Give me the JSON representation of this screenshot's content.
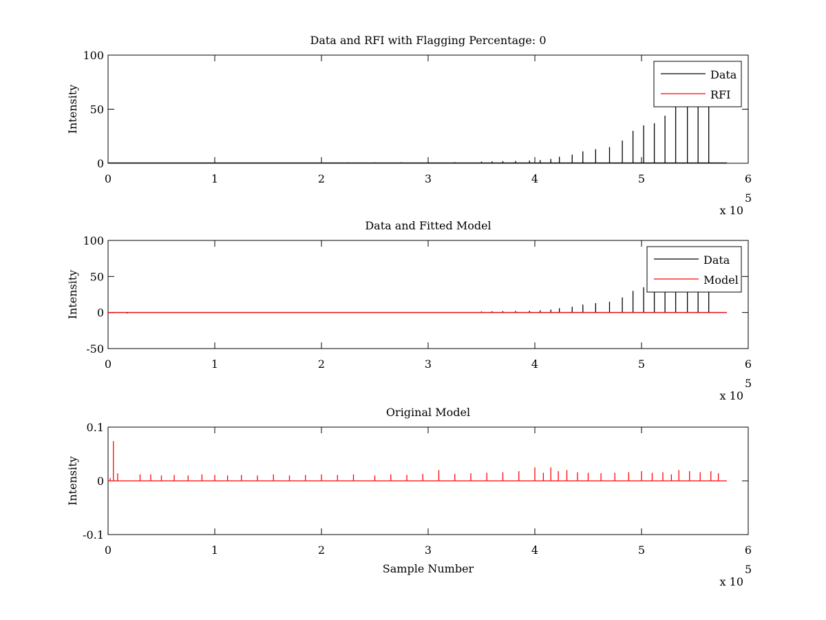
{
  "figure": {
    "background": "#ffffff"
  },
  "chart_data": [
    {
      "type": "line",
      "title": "Data and RFI with Flagging Percentage: 0",
      "xlabel": "",
      "ylabel": "Intensity",
      "xlim": [
        0,
        6
      ],
      "ylim": [
        0,
        100
      ],
      "x_ticks": [
        "0",
        "1",
        "2",
        "3",
        "4",
        "5",
        "6"
      ],
      "y_ticks": [
        "0",
        "50",
        "100"
      ],
      "y_tick_values": [
        0,
        50,
        100
      ],
      "x_multiplier": {
        "base": "x 10",
        "exponent": "5"
      },
      "legend": {
        "placement": "top-right",
        "entries": [
          "Data",
          "RFI"
        ]
      },
      "series": [
        {
          "name": "Data",
          "color": "#000000",
          "style": "spikes",
          "baseline": 0.3,
          "x": [
            1.0,
            2.25,
            2.5,
            2.75,
            3.0,
            3.25,
            3.5,
            3.6,
            3.7,
            3.82,
            3.95,
            4.05,
            4.15,
            4.23,
            4.35,
            4.45,
            4.57,
            4.7,
            4.82,
            4.92,
            5.02,
            5.12,
            5.22,
            5.32,
            5.43,
            5.53,
            5.63
          ],
          "values": [
            0.8,
            0.8,
            0.8,
            0.9,
            0.9,
            1.0,
            1.5,
            1.8,
            2,
            2.2,
            2.5,
            3,
            4,
            6,
            8,
            11,
            13,
            15,
            21,
            30,
            35,
            37,
            44,
            52,
            58,
            62,
            70
          ]
        },
        {
          "name": "RFI",
          "color": "#ff0000",
          "style": "line",
          "x": [],
          "values": []
        }
      ]
    },
    {
      "type": "line",
      "title": "Data and Fitted Model",
      "xlabel": "",
      "ylabel": "Intensity",
      "xlim": [
        0,
        6
      ],
      "ylim": [
        -50,
        100
      ],
      "x_ticks": [
        "0",
        "1",
        "2",
        "3",
        "4",
        "5",
        "6"
      ],
      "y_ticks": [
        "-50",
        "0",
        "50",
        "100"
      ],
      "y_tick_values": [
        -50,
        0,
        50,
        100
      ],
      "x_multiplier": {
        "base": "x 10",
        "exponent": "5"
      },
      "legend": {
        "placement": "top-right",
        "entries": [
          "Data",
          "Model"
        ]
      },
      "series": [
        {
          "name": "Data",
          "color": "#000000",
          "style": "spikes",
          "baseline": 0,
          "x": [
            0.18,
            3.5,
            3.6,
            3.7,
            3.82,
            3.95,
            4.05,
            4.15,
            4.23,
            4.35,
            4.45,
            4.57,
            4.7,
            4.82,
            4.92,
            5.02,
            5.12,
            5.22,
            5.32,
            5.43,
            5.53,
            5.63
          ],
          "values": [
            -1.2,
            1.5,
            1.8,
            2,
            2.2,
            2.5,
            3,
            4,
            6,
            8,
            11,
            13,
            15,
            21,
            30,
            35,
            37,
            44,
            52,
            58,
            62,
            70
          ]
        },
        {
          "name": "Model",
          "color": "#ff0000",
          "style": "line",
          "x": [
            0,
            5.8
          ],
          "values": [
            0.2,
            0.2
          ]
        }
      ]
    },
    {
      "type": "line",
      "title": "Original Model",
      "xlabel": "Sample Number",
      "ylabel": "Intensity",
      "xlim": [
        0,
        6
      ],
      "ylim": [
        -0.1,
        0.1
      ],
      "x_ticks": [
        "0",
        "1",
        "2",
        "3",
        "4",
        "5",
        "6"
      ],
      "y_ticks": [
        "-0.1",
        "0",
        "0.1"
      ],
      "y_tick_values": [
        -0.1,
        0,
        0.1
      ],
      "x_multiplier": {
        "base": "x 10",
        "exponent": "5"
      },
      "legend": null,
      "series": [
        {
          "name": "",
          "color": "#ff0000",
          "style": "spikes",
          "baseline": 0,
          "x": [
            0.02,
            0.05,
            0.09,
            0.3,
            0.4,
            0.5,
            0.62,
            0.75,
            0.88,
            1.0,
            1.12,
            1.25,
            1.4,
            1.55,
            1.7,
            1.85,
            2.0,
            2.15,
            2.3,
            2.5,
            2.65,
            2.8,
            2.95,
            3.1,
            3.25,
            3.4,
            3.55,
            3.7,
            3.85,
            4.0,
            4.08,
            4.15,
            4.22,
            4.3,
            4.4,
            4.5,
            4.62,
            4.75,
            4.88,
            5.0,
            5.1,
            5.2,
            5.28,
            5.35,
            5.45,
            5.55,
            5.65,
            5.72
          ],
          "values": [
            0.005,
            0.074,
            0.014,
            0.012,
            0.012,
            0.01,
            0.011,
            0.01,
            0.012,
            0.011,
            0.01,
            0.011,
            0.01,
            0.012,
            0.01,
            0.011,
            0.012,
            0.011,
            0.012,
            0.01,
            0.012,
            0.011,
            0.013,
            0.02,
            0.013,
            0.014,
            0.015,
            0.016,
            0.018,
            0.025,
            0.015,
            0.025,
            0.018,
            0.02,
            0.016,
            0.015,
            0.014,
            0.015,
            0.016,
            0.018,
            0.015,
            0.016,
            0.012,
            0.02,
            0.018,
            0.016,
            0.018,
            0.014
          ]
        }
      ]
    }
  ]
}
